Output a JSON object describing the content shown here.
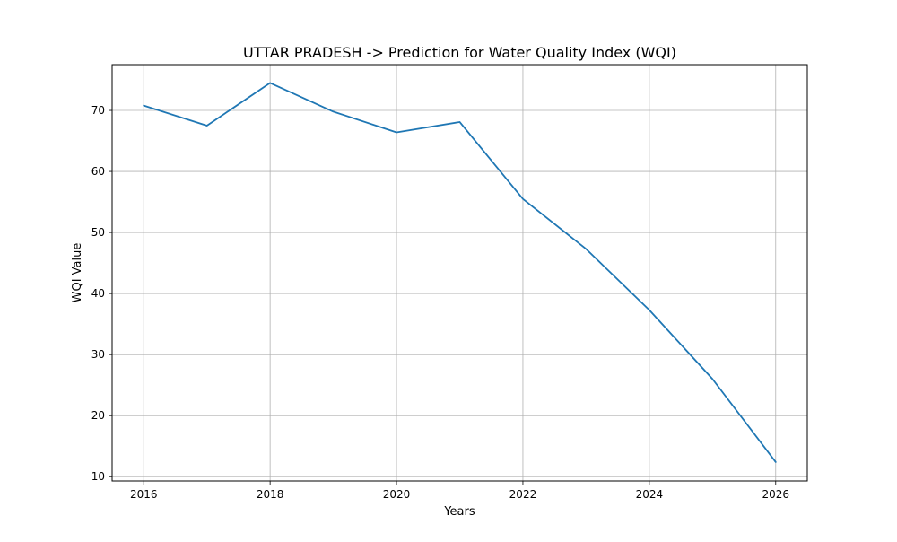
{
  "chart_data": {
    "type": "line",
    "title": "UTTAR PRADESH -> Prediction for Water Quality Index (WQI)",
    "xlabel": "Years",
    "ylabel": "WQI Value",
    "x": [
      2016,
      2017,
      2018,
      2019,
      2020,
      2021,
      2022,
      2023,
      2024,
      2025,
      2026
    ],
    "series": [
      {
        "values": [
          70.8,
          67.5,
          74.5,
          69.8,
          66.4,
          68.1,
          55.5,
          47.3,
          37.3,
          26.0,
          12.4
        ],
        "color": "#1f77b4"
      }
    ],
    "xticks": [
      2016,
      2018,
      2020,
      2022,
      2024,
      2026
    ],
    "yticks": [
      10,
      20,
      30,
      40,
      50,
      60,
      70
    ],
    "xlim": [
      2015.5,
      2026.5
    ],
    "ylim": [
      9.3,
      77.5
    ],
    "grid": true
  }
}
